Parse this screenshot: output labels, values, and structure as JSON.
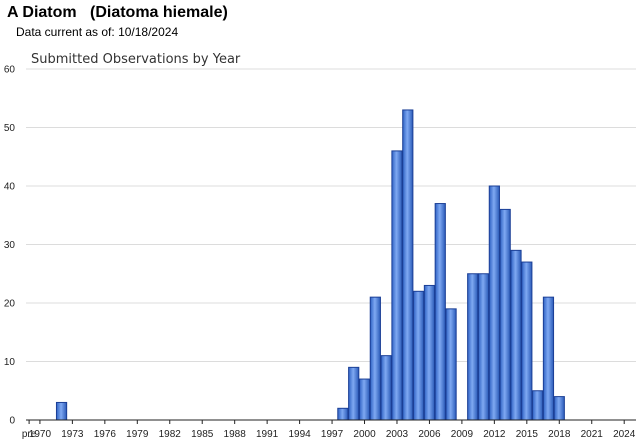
{
  "header": {
    "common_name": "A Diatom",
    "scientific_name": "(Diatoma hiemale)",
    "data_current_label": "Data current as of:",
    "data_current_date": "10/18/2024"
  },
  "chart_data": {
    "type": "bar",
    "title": "Submitted Observations by Year",
    "xlabel": "",
    "ylabel": "",
    "ylim": [
      0,
      60
    ],
    "yticks": [
      0,
      10,
      20,
      30,
      40,
      50,
      60
    ],
    "grid": true,
    "legend": "none",
    "bar_color": "#3a74d9",
    "bar_border_color": "#1b3f96",
    "x_tick_labels": [
      "pre",
      "1970",
      "1973",
      "1976",
      "1979",
      "1982",
      "1985",
      "1988",
      "1991",
      "1994",
      "1997",
      "2000",
      "2003",
      "2006",
      "2009",
      "2012",
      "2015",
      "2018",
      "2021",
      "2024"
    ],
    "categories": [
      "pre",
      "1970",
      "1971",
      "1972",
      "1973",
      "1974",
      "1975",
      "1976",
      "1977",
      "1978",
      "1979",
      "1980",
      "1981",
      "1982",
      "1983",
      "1984",
      "1985",
      "1986",
      "1987",
      "1988",
      "1989",
      "1990",
      "1991",
      "1992",
      "1993",
      "1994",
      "1995",
      "1996",
      "1997",
      "1998",
      "1999",
      "2000",
      "2001",
      "2002",
      "2003",
      "2004",
      "2005",
      "2006",
      "2007",
      "2008",
      "2009",
      "2010",
      "2011",
      "2012",
      "2013",
      "2014",
      "2015",
      "2016",
      "2017",
      "2018",
      "2019",
      "2020",
      "2021",
      "2022",
      "2023",
      "2024"
    ],
    "values": [
      0,
      0,
      0,
      3,
      0,
      0,
      0,
      0,
      0,
      0,
      0,
      0,
      0,
      0,
      0,
      0,
      0,
      0,
      0,
      0,
      0,
      0,
      0,
      0,
      0,
      0,
      0,
      0,
      0,
      2,
      9,
      7,
      21,
      11,
      46,
      53,
      22,
      23,
      37,
      19,
      0,
      25,
      25,
      40,
      36,
      29,
      27,
      5,
      21,
      4,
      0,
      0,
      0,
      0,
      0,
      0
    ]
  }
}
